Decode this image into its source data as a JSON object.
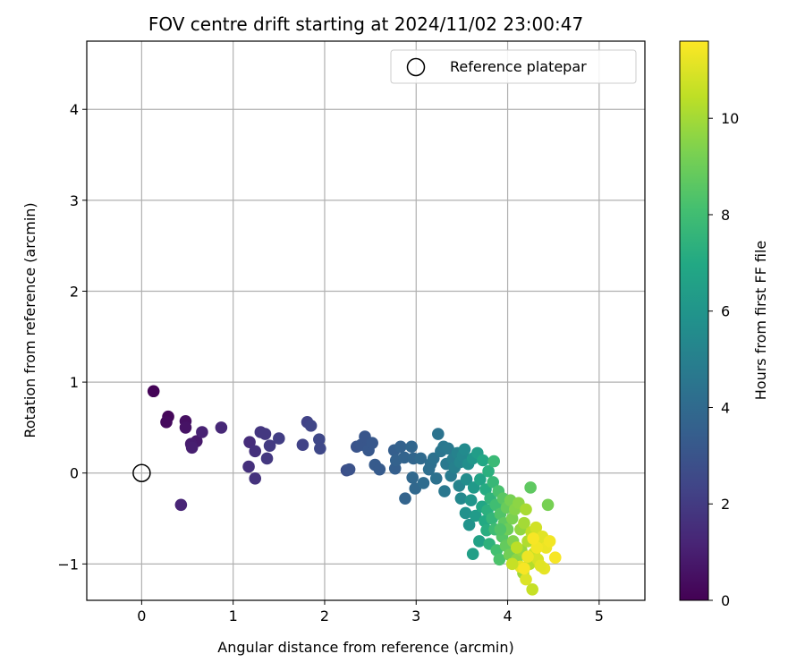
{
  "chart_data": {
    "type": "scatter",
    "title": "FOV centre drift starting at 2024/11/02 23:00:47",
    "xlabel": "Angular distance from reference (arcmin)",
    "ylabel": "Rotation from reference (arcmin)",
    "xlim": [
      -0.6,
      5.5
    ],
    "ylim": [
      -1.4,
      4.75
    ],
    "xticks": [
      0,
      1,
      2,
      3,
      4,
      5
    ],
    "yticks": [
      -1,
      0,
      1,
      2,
      3,
      4
    ],
    "xtick_labels": [
      "0",
      "1",
      "2",
      "3",
      "4",
      "5"
    ],
    "ytick_labels": [
      "−1",
      "0",
      "1",
      "2",
      "3",
      "4"
    ],
    "grid": true,
    "legend": {
      "placement": "upper-right",
      "entries": [
        "Reference platepar"
      ]
    },
    "colorbar": {
      "label": "Hours from first FF file",
      "range": [
        0,
        11.6
      ],
      "ticks": [
        0,
        2,
        4,
        6,
        8,
        10
      ],
      "tick_labels": [
        "0",
        "2",
        "4",
        "6",
        "8",
        "10"
      ],
      "colormap": "viridis"
    },
    "reference_point": {
      "name": "Reference platepar",
      "x": 0,
      "y": 0
    },
    "series": [
      {
        "points": [
          {
            "x": 0.13,
            "y": 0.9,
            "c": 0.1
          },
          {
            "x": 0.29,
            "y": 0.62,
            "c": 0.2
          },
          {
            "x": 0.27,
            "y": 0.56,
            "c": 0.3
          },
          {
            "x": 0.48,
            "y": 0.57,
            "c": 0.5
          },
          {
            "x": 0.48,
            "y": 0.5,
            "c": 0.6
          },
          {
            "x": 0.6,
            "y": 0.35,
            "c": 0.8
          },
          {
            "x": 0.54,
            "y": 0.32,
            "c": 0.9
          },
          {
            "x": 0.55,
            "y": 0.28,
            "c": 1.0
          },
          {
            "x": 0.66,
            "y": 0.45,
            "c": 1.1
          },
          {
            "x": 0.43,
            "y": -0.35,
            "c": 1.2
          },
          {
            "x": 0.87,
            "y": 0.5,
            "c": 1.3
          },
          {
            "x": 1.18,
            "y": 0.34,
            "c": 1.5
          },
          {
            "x": 1.17,
            "y": 0.07,
            "c": 1.6
          },
          {
            "x": 1.24,
            "y": 0.24,
            "c": 1.6
          },
          {
            "x": 1.24,
            "y": -0.06,
            "c": 1.7
          },
          {
            "x": 1.3,
            "y": 0.45,
            "c": 1.8
          },
          {
            "x": 1.35,
            "y": 0.43,
            "c": 1.9
          },
          {
            "x": 1.37,
            "y": 0.16,
            "c": 1.9
          },
          {
            "x": 1.4,
            "y": 0.3,
            "c": 2.0
          },
          {
            "x": 1.5,
            "y": 0.38,
            "c": 2.1
          },
          {
            "x": 1.76,
            "y": 0.31,
            "c": 2.3
          },
          {
            "x": 1.81,
            "y": 0.56,
            "c": 2.3
          },
          {
            "x": 1.85,
            "y": 0.52,
            "c": 2.4
          },
          {
            "x": 1.94,
            "y": 0.37,
            "c": 2.5
          },
          {
            "x": 1.95,
            "y": 0.27,
            "c": 2.5
          },
          {
            "x": 2.24,
            "y": 0.03,
            "c": 2.8
          },
          {
            "x": 2.27,
            "y": 0.04,
            "c": 2.9
          },
          {
            "x": 2.35,
            "y": 0.29,
            "c": 3.0
          },
          {
            "x": 2.4,
            "y": 0.31,
            "c": 3.1
          },
          {
            "x": 2.44,
            "y": 0.4,
            "c": 3.1
          },
          {
            "x": 2.48,
            "y": 0.25,
            "c": 3.2
          },
          {
            "x": 2.52,
            "y": 0.33,
            "c": 3.2
          },
          {
            "x": 2.55,
            "y": 0.09,
            "c": 3.3
          },
          {
            "x": 2.6,
            "y": 0.04,
            "c": 3.3
          },
          {
            "x": 2.77,
            "y": 0.05,
            "c": 3.5
          },
          {
            "x": 2.76,
            "y": 0.25,
            "c": 3.5
          },
          {
            "x": 2.78,
            "y": 0.14,
            "c": 3.6
          },
          {
            "x": 2.83,
            "y": 0.29,
            "c": 3.6
          },
          {
            "x": 2.87,
            "y": 0.17,
            "c": 3.7
          },
          {
            "x": 2.88,
            "y": -0.28,
            "c": 3.7
          },
          {
            "x": 2.95,
            "y": 0.29,
            "c": 3.8
          },
          {
            "x": 2.97,
            "y": 0.16,
            "c": 3.8
          },
          {
            "x": 2.96,
            "y": -0.05,
            "c": 3.9
          },
          {
            "x": 2.99,
            "y": -0.17,
            "c": 3.9
          },
          {
            "x": 3.05,
            "y": 0.16,
            "c": 4.0
          },
          {
            "x": 3.08,
            "y": -0.11,
            "c": 4.1
          },
          {
            "x": 3.14,
            "y": 0.04,
            "c": 4.2
          },
          {
            "x": 3.16,
            "y": 0.1,
            "c": 4.2
          },
          {
            "x": 3.19,
            "y": 0.16,
            "c": 4.3
          },
          {
            "x": 3.22,
            "y": -0.06,
            "c": 4.3
          },
          {
            "x": 3.24,
            "y": 0.43,
            "c": 4.4
          },
          {
            "x": 3.27,
            "y": 0.24,
            "c": 4.5
          },
          {
            "x": 3.3,
            "y": 0.29,
            "c": 4.6
          },
          {
            "x": 3.31,
            "y": -0.2,
            "c": 4.6
          },
          {
            "x": 3.33,
            "y": 0.1,
            "c": 4.7
          },
          {
            "x": 3.35,
            "y": 0.27,
            "c": 4.7
          },
          {
            "x": 3.38,
            "y": -0.03,
            "c": 4.8
          },
          {
            "x": 3.4,
            "y": 0.15,
            "c": 4.9
          },
          {
            "x": 3.42,
            "y": 0.06,
            "c": 5.0
          },
          {
            "x": 3.45,
            "y": 0.22,
            "c": 5.1
          },
          {
            "x": 3.47,
            "y": -0.14,
            "c": 5.2
          },
          {
            "x": 3.48,
            "y": 0.12,
            "c": 5.3
          },
          {
            "x": 3.49,
            "y": -0.28,
            "c": 5.4
          },
          {
            "x": 3.51,
            "y": 0.19,
            "c": 5.4
          },
          {
            "x": 3.53,
            "y": 0.26,
            "c": 5.5
          },
          {
            "x": 3.55,
            "y": -0.07,
            "c": 5.6
          },
          {
            "x": 3.57,
            "y": 0.1,
            "c": 5.7
          },
          {
            "x": 3.54,
            "y": -0.44,
            "c": 5.8
          },
          {
            "x": 3.58,
            "y": -0.57,
            "c": 5.9
          },
          {
            "x": 3.6,
            "y": -0.3,
            "c": 6.0
          },
          {
            "x": 3.62,
            "y": 0.16,
            "c": 6.1
          },
          {
            "x": 3.63,
            "y": -0.16,
            "c": 6.2
          },
          {
            "x": 3.65,
            "y": -0.47,
            "c": 6.3
          },
          {
            "x": 3.67,
            "y": 0.22,
            "c": 6.4
          },
          {
            "x": 3.62,
            "y": -0.89,
            "c": 6.5
          },
          {
            "x": 3.69,
            "y": -0.75,
            "c": 6.6
          },
          {
            "x": 3.7,
            "y": -0.07,
            "c": 6.7
          },
          {
            "x": 3.72,
            "y": -0.37,
            "c": 6.8
          },
          {
            "x": 3.73,
            "y": 0.14,
            "c": 6.9
          },
          {
            "x": 3.75,
            "y": -0.53,
            "c": 7.0
          },
          {
            "x": 3.76,
            "y": -0.18,
            "c": 7.1
          },
          {
            "x": 3.77,
            "y": -0.63,
            "c": 7.2
          },
          {
            "x": 3.78,
            "y": -0.41,
            "c": 7.3
          },
          {
            "x": 3.79,
            "y": 0.02,
            "c": 7.3
          },
          {
            "x": 3.8,
            "y": -0.78,
            "c": 7.4
          },
          {
            "x": 3.81,
            "y": -0.28,
            "c": 7.5
          },
          {
            "x": 3.83,
            "y": -0.5,
            "c": 7.6
          },
          {
            "x": 3.84,
            "y": -0.1,
            "c": 7.7
          },
          {
            "x": 3.85,
            "y": 0.13,
            "c": 7.8
          },
          {
            "x": 3.86,
            "y": -0.62,
            "c": 7.9
          },
          {
            "x": 3.87,
            "y": -0.35,
            "c": 8.0
          },
          {
            "x": 3.88,
            "y": -0.85,
            "c": 8.1
          },
          {
            "x": 3.9,
            "y": -0.2,
            "c": 8.2
          },
          {
            "x": 3.91,
            "y": -0.95,
            "c": 8.3
          },
          {
            "x": 3.92,
            "y": -0.45,
            "c": 8.4
          },
          {
            "x": 3.94,
            "y": -0.7,
            "c": 8.5
          },
          {
            "x": 3.95,
            "y": -0.28,
            "c": 8.6
          },
          {
            "x": 3.96,
            "y": -0.55,
            "c": 8.7
          },
          {
            "x": 3.98,
            "y": -0.8,
            "c": 8.8
          },
          {
            "x": 3.99,
            "y": -0.38,
            "c": 8.9
          },
          {
            "x": 4.0,
            "y": -0.62,
            "c": 9.0
          },
          {
            "x": 4.02,
            "y": -0.9,
            "c": 9.1
          },
          {
            "x": 4.03,
            "y": -0.3,
            "c": 9.2
          },
          {
            "x": 4.05,
            "y": -0.5,
            "c": 9.3
          },
          {
            "x": 4.06,
            "y": -0.75,
            "c": 9.4
          },
          {
            "x": 4.08,
            "y": -0.4,
            "c": 9.5
          },
          {
            "x": 4.1,
            "y": -0.95,
            "c": 9.6
          },
          {
            "x": 4.12,
            "y": -0.33,
            "c": 9.6
          },
          {
            "x": 4.14,
            "y": -0.62,
            "c": 9.7
          },
          {
            "x": 4.15,
            "y": -0.85,
            "c": 9.8
          },
          {
            "x": 4.17,
            "y": -1.1,
            "c": 9.9
          },
          {
            "x": 4.18,
            "y": -0.55,
            "c": 10.0
          },
          {
            "x": 4.2,
            "y": -0.4,
            "c": 10.1
          },
          {
            "x": 4.22,
            "y": -0.75,
            "c": 10.2
          },
          {
            "x": 4.24,
            "y": -1.0,
            "c": 10.3
          },
          {
            "x": 4.25,
            "y": -0.16,
            "c": 8.7
          },
          {
            "x": 4.26,
            "y": -0.65,
            "c": 10.5
          },
          {
            "x": 4.27,
            "y": -1.28,
            "c": 10.6
          },
          {
            "x": 4.29,
            "y": -0.88,
            "c": 10.7
          },
          {
            "x": 4.31,
            "y": -0.6,
            "c": 10.8
          },
          {
            "x": 4.33,
            "y": -0.95,
            "c": 10.9
          },
          {
            "x": 4.35,
            "y": -0.78,
            "c": 11.0
          },
          {
            "x": 4.38,
            "y": -0.7,
            "c": 11.1
          },
          {
            "x": 4.4,
            "y": -1.05,
            "c": 11.2
          },
          {
            "x": 4.42,
            "y": -0.82,
            "c": 11.3
          },
          {
            "x": 4.44,
            "y": -0.35,
            "c": 9.2
          },
          {
            "x": 4.46,
            "y": -0.75,
            "c": 11.4
          },
          {
            "x": 4.52,
            "y": -0.93,
            "c": 11.5
          },
          {
            "x": 4.2,
            "y": -1.17,
            "c": 11.0
          },
          {
            "x": 4.14,
            "y": -1.03,
            "c": 11.2
          },
          {
            "x": 4.32,
            "y": -0.82,
            "c": 11.4
          },
          {
            "x": 4.22,
            "y": -0.92,
            "c": 11.3
          },
          {
            "x": 4.28,
            "y": -0.72,
            "c": 11.5
          },
          {
            "x": 4.1,
            "y": -0.82,
            "c": 10.4
          },
          {
            "x": 4.36,
            "y": -1.02,
            "c": 11.1
          },
          {
            "x": 4.05,
            "y": -1.0,
            "c": 10.6
          },
          {
            "x": 3.92,
            "y": -0.62,
            "c": 8.4
          },
          {
            "x": 4.18,
            "y": -1.05,
            "c": 11.5
          }
        ]
      }
    ]
  }
}
